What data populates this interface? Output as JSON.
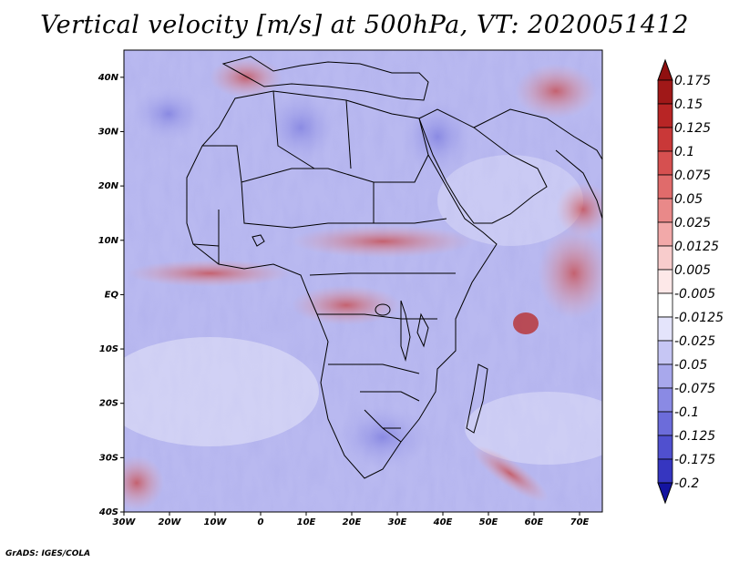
{
  "title": "Vertical velocity [m/s] at 500hPa, VT: 2020051412",
  "footer": "GrADS: IGES/COLA",
  "map": {
    "lon_range": [
      -30,
      75
    ],
    "lat_range": [
      -40,
      45
    ],
    "lat_ticks": [
      {
        "value": 40,
        "label": "40N"
      },
      {
        "value": 30,
        "label": "30N"
      },
      {
        "value": 20,
        "label": "20N"
      },
      {
        "value": 10,
        "label": "10N"
      },
      {
        "value": 0,
        "label": "EQ"
      },
      {
        "value": -10,
        "label": "10S"
      },
      {
        "value": -20,
        "label": "20S"
      },
      {
        "value": -30,
        "label": "30S"
      },
      {
        "value": -40,
        "label": "40S"
      }
    ],
    "lon_ticks": [
      {
        "value": -30,
        "label": "30W"
      },
      {
        "value": -20,
        "label": "20W"
      },
      {
        "value": -10,
        "label": "10W"
      },
      {
        "value": 0,
        "label": "0"
      },
      {
        "value": 10,
        "label": "10E"
      },
      {
        "value": 20,
        "label": "20E"
      },
      {
        "value": 30,
        "label": "30E"
      },
      {
        "value": 40,
        "label": "40E"
      },
      {
        "value": 50,
        "label": "50E"
      },
      {
        "value": 60,
        "label": "60E"
      },
      {
        "value": 70,
        "label": "70E"
      }
    ]
  },
  "colorbar": {
    "levels": [
      {
        "label": "0.175",
        "color": "#a01818"
      },
      {
        "label": "0.15",
        "color": "#b82525"
      },
      {
        "label": "0.125",
        "color": "#c93838"
      },
      {
        "label": "0.1",
        "color": "#d65050"
      },
      {
        "label": "0.075",
        "color": "#e06b6b"
      },
      {
        "label": "0.05",
        "color": "#e98989"
      },
      {
        "label": "0.025",
        "color": "#f2a9a9"
      },
      {
        "label": "0.0125",
        "color": "#f8cccc"
      },
      {
        "label": "0.005",
        "color": "#fde8e8"
      },
      {
        "label": "-0.005",
        "color": "#ffffff"
      },
      {
        "label": "-0.0125",
        "color": "#e4e4fb"
      },
      {
        "label": "-0.025",
        "color": "#c6c6f4"
      },
      {
        "label": "-0.05",
        "color": "#a8a8ec"
      },
      {
        "label": "-0.075",
        "color": "#8a8ae4"
      },
      {
        "label": "-0.1",
        "color": "#6c6cda"
      },
      {
        "label": "-0.125",
        "color": "#5050cf"
      },
      {
        "label": "-0.175",
        "color": "#3636c0"
      },
      {
        "label": "-0.2",
        "color": "#2020b0"
      }
    ],
    "top_color": "#901010",
    "bottom_color": "#1414a0"
  }
}
